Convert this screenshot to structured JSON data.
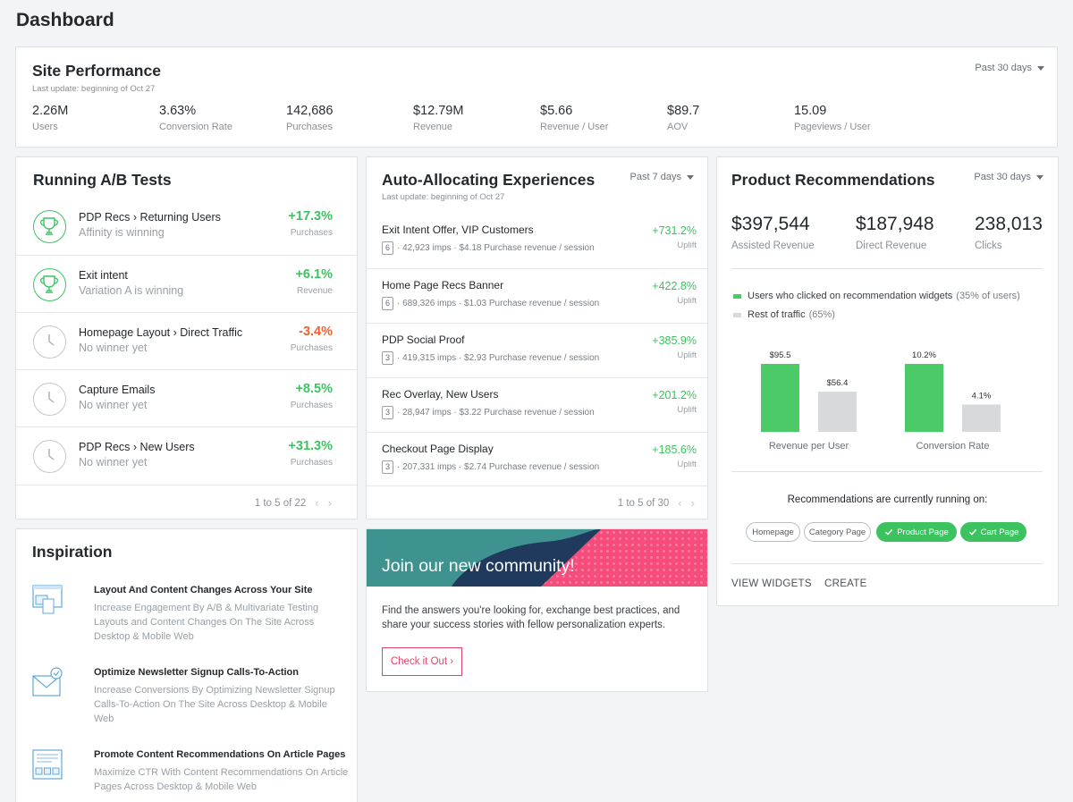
{
  "page": {
    "title": "Dashboard"
  },
  "site_performance": {
    "title": "Site Performance",
    "last_update": "Last update: beginning of Oct 27",
    "range": "Past 30 days",
    "metrics": [
      {
        "value": "2.26M",
        "label": "Users"
      },
      {
        "value": "3.63%",
        "label": "Conversion Rate"
      },
      {
        "value": "142,686",
        "label": "Purchases"
      },
      {
        "value": "$12.79M",
        "label": "Revenue"
      },
      {
        "value": "$5.66",
        "label": "Revenue / User"
      },
      {
        "value": "$89.7",
        "label": "AOV"
      },
      {
        "value": "15.09",
        "label": "Pageviews / User"
      }
    ]
  },
  "ab_tests": {
    "title": "Running A/B Tests",
    "rows": [
      {
        "name": "PDP Recs › Returning Users",
        "status": "Affinity is winning",
        "value": "+17.3%",
        "metric": "Purchases",
        "icon": "trophy-icon"
      },
      {
        "name": "Exit intent",
        "status": "Variation A is winning",
        "value": "+6.1%",
        "metric": "Revenue",
        "icon": "trophy-icon"
      },
      {
        "name": "Homepage Layout › Direct Traffic",
        "status": "No winner yet",
        "value": "-3.4%",
        "metric": "Purchases",
        "icon": "clock-icon"
      },
      {
        "name": "Capture Emails",
        "status": "No winner yet",
        "value": "+8.5%",
        "metric": "Purchases",
        "icon": "clock-icon"
      },
      {
        "name": "PDP Recs › New Users",
        "status": "No winner yet",
        "value": "+31.3%",
        "metric": "Purchases",
        "icon": "clock-icon"
      }
    ],
    "pager": "1 to 5 of 22"
  },
  "auto_alloc": {
    "title": "Auto-Allocating Experiences",
    "last_update": "Last update: beginning of Oct 27",
    "range": "Past 7 days",
    "rows": [
      {
        "name": "Exit Intent Offer, VIP Customers",
        "count": "6",
        "detail": "· 42,923 imps · $4.18 Purchase revenue / session",
        "value": "+731.2%",
        "sub": "Uplift"
      },
      {
        "name": "Home Page Recs Banner",
        "count": "6",
        "detail": "· 689,326 imps · $1.03 Purchase revenue / session",
        "value": "+422.8%",
        "sub": "Uplift"
      },
      {
        "name": "PDP Social Proof",
        "count": "3",
        "detail": "· 419,315 imps · $2.93 Purchase revenue / session",
        "value": "+385.9%",
        "sub": "Uplift"
      },
      {
        "name": "Rec Overlay, New Users",
        "count": "3",
        "detail": "· 28,947 imps · $3.22 Purchase revenue / session",
        "value": "+201.2%",
        "sub": "Uplift"
      },
      {
        "name": "Checkout Page Display",
        "count": "3",
        "detail": "· 207,331 imps · $2.74 Purchase revenue / session",
        "value": "+185.6%",
        "sub": "Uplift"
      }
    ],
    "pager": "1 to 5 of 30"
  },
  "product_recs": {
    "title": "Product Recommendations",
    "range": "Past 30 days",
    "stats": [
      {
        "value": "$397,544",
        "label": "Assisted Revenue"
      },
      {
        "value": "$187,948",
        "label": "Direct Revenue"
      },
      {
        "value": "238,013",
        "label": "Clicks"
      }
    ],
    "legend": {
      "clicked": "Users who clicked on recommendation widgets",
      "clicked_note": "(35% of users)",
      "rest": "Rest of traffic",
      "rest_note": "(65%)"
    },
    "running_on": "Recommendations are currently running on:",
    "pills": [
      {
        "label": "Homepage",
        "active": false
      },
      {
        "label": "Category Page",
        "active": false
      },
      {
        "label": "Product Page",
        "active": true
      },
      {
        "label": "Cart Page",
        "active": true
      }
    ],
    "actions": {
      "view": "VIEW WIDGETS",
      "create": "CREATE"
    },
    "colors": {
      "clicked": "#4cca68",
      "rest": "#d8d9db"
    }
  },
  "chart_data": {
    "type": "bar",
    "categories": [
      "Revenue per User",
      "Conversion Rate"
    ],
    "series": [
      {
        "name": "Users who clicked on recommendation widgets",
        "values": [
          95.5,
          10.2
        ],
        "labels": [
          "$95.5",
          "10.2%"
        ]
      },
      {
        "name": "Rest of traffic",
        "values": [
          56.4,
          4.1
        ],
        "labels": [
          "$56.4",
          "4.1%"
        ]
      }
    ],
    "title": "",
    "xlabel": "",
    "ylabel": ""
  },
  "inspiration": {
    "title": "Inspiration",
    "items": [
      {
        "title": "Layout And Content Changes Across Your Site",
        "desc": "Increase Engagement By A/B & Multivariate Testing Layouts and Content Changes On The Site Across Desktop & Mobile Web",
        "icon": "layout-icon"
      },
      {
        "title": "Optimize Newsletter Signup Calls-To-Action",
        "desc": "Increase Conversions By Optimizing Newsletter Signup Calls-To-Action On The Site Across Desktop & Mobile Web",
        "icon": "newsletter-icon"
      },
      {
        "title": "Promote Content Recommendations On Article Pages",
        "desc": "Maximize CTR With Content Recommendations On Article Pages Across Desktop & Mobile Web",
        "icon": "article-icon"
      }
    ]
  },
  "community": {
    "banner": "Join our new community!",
    "body": "Find the answers you're looking for, exchange best practices, and share your success stories with fellow personalization experts.",
    "cta": "Check it Out ›"
  }
}
